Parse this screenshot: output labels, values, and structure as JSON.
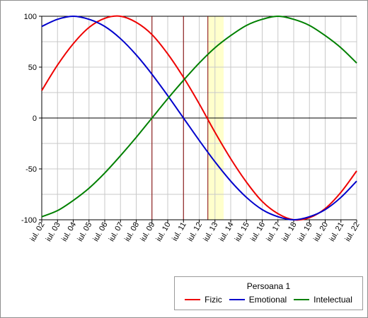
{
  "chart_data": {
    "type": "line",
    "x_labels": [
      "iul. 02",
      "iul. 03",
      "iul. 04",
      "iul. 05",
      "iul. 06",
      "iul. 07",
      "iul. 08",
      "iul. 09",
      "iul. 10",
      "iul. 11",
      "iul. 12",
      "iul. 13",
      "iul. 14",
      "iul. 15",
      "iul. 16",
      "iul. 17",
      "iul. 18",
      "iul. 19",
      "iul. 20",
      "iul. 21",
      "iul. 22"
    ],
    "ylim": [
      -100,
      100
    ],
    "y_ticks": [
      100,
      50,
      0,
      -50,
      -100
    ],
    "series": [
      {
        "name": "Fizic",
        "color": "#ee0000",
        "values": [
          27,
          52,
          73,
          89,
          98,
          100,
          94,
          82,
          63,
          40,
          14,
          -14,
          -40,
          -63,
          -82,
          -94,
          -100,
          -98,
          -89,
          -73,
          -52
        ]
      },
      {
        "name": "Emotional",
        "color": "#0000cc",
        "values": [
          90,
          97,
          100,
          97,
          90,
          78,
          62,
          43,
          22,
          0,
          -22,
          -43,
          -62,
          -78,
          -90,
          -97,
          -100,
          -97,
          -90,
          -78,
          -62
        ]
      },
      {
        "name": "Intelectual",
        "color": "#008000",
        "values": [
          -97,
          -91,
          -81,
          -69,
          -54,
          -37,
          -19,
          0,
          19,
          37,
          54,
          69,
          81,
          91,
          97,
          100,
          97,
          91,
          81,
          69,
          54
        ]
      }
    ],
    "markers": {
      "vertical_lines": [
        "iul. 09",
        "iul. 11",
        "iul. 12"
      ],
      "vertical_line_color": "#800000",
      "highlight_band": [
        "iul. 12",
        "iul. 13"
      ],
      "highlight_color": "#ffffcc"
    },
    "grid": true,
    "legend": {
      "title": "Persoana 1",
      "placement": "bottom-right"
    }
  }
}
